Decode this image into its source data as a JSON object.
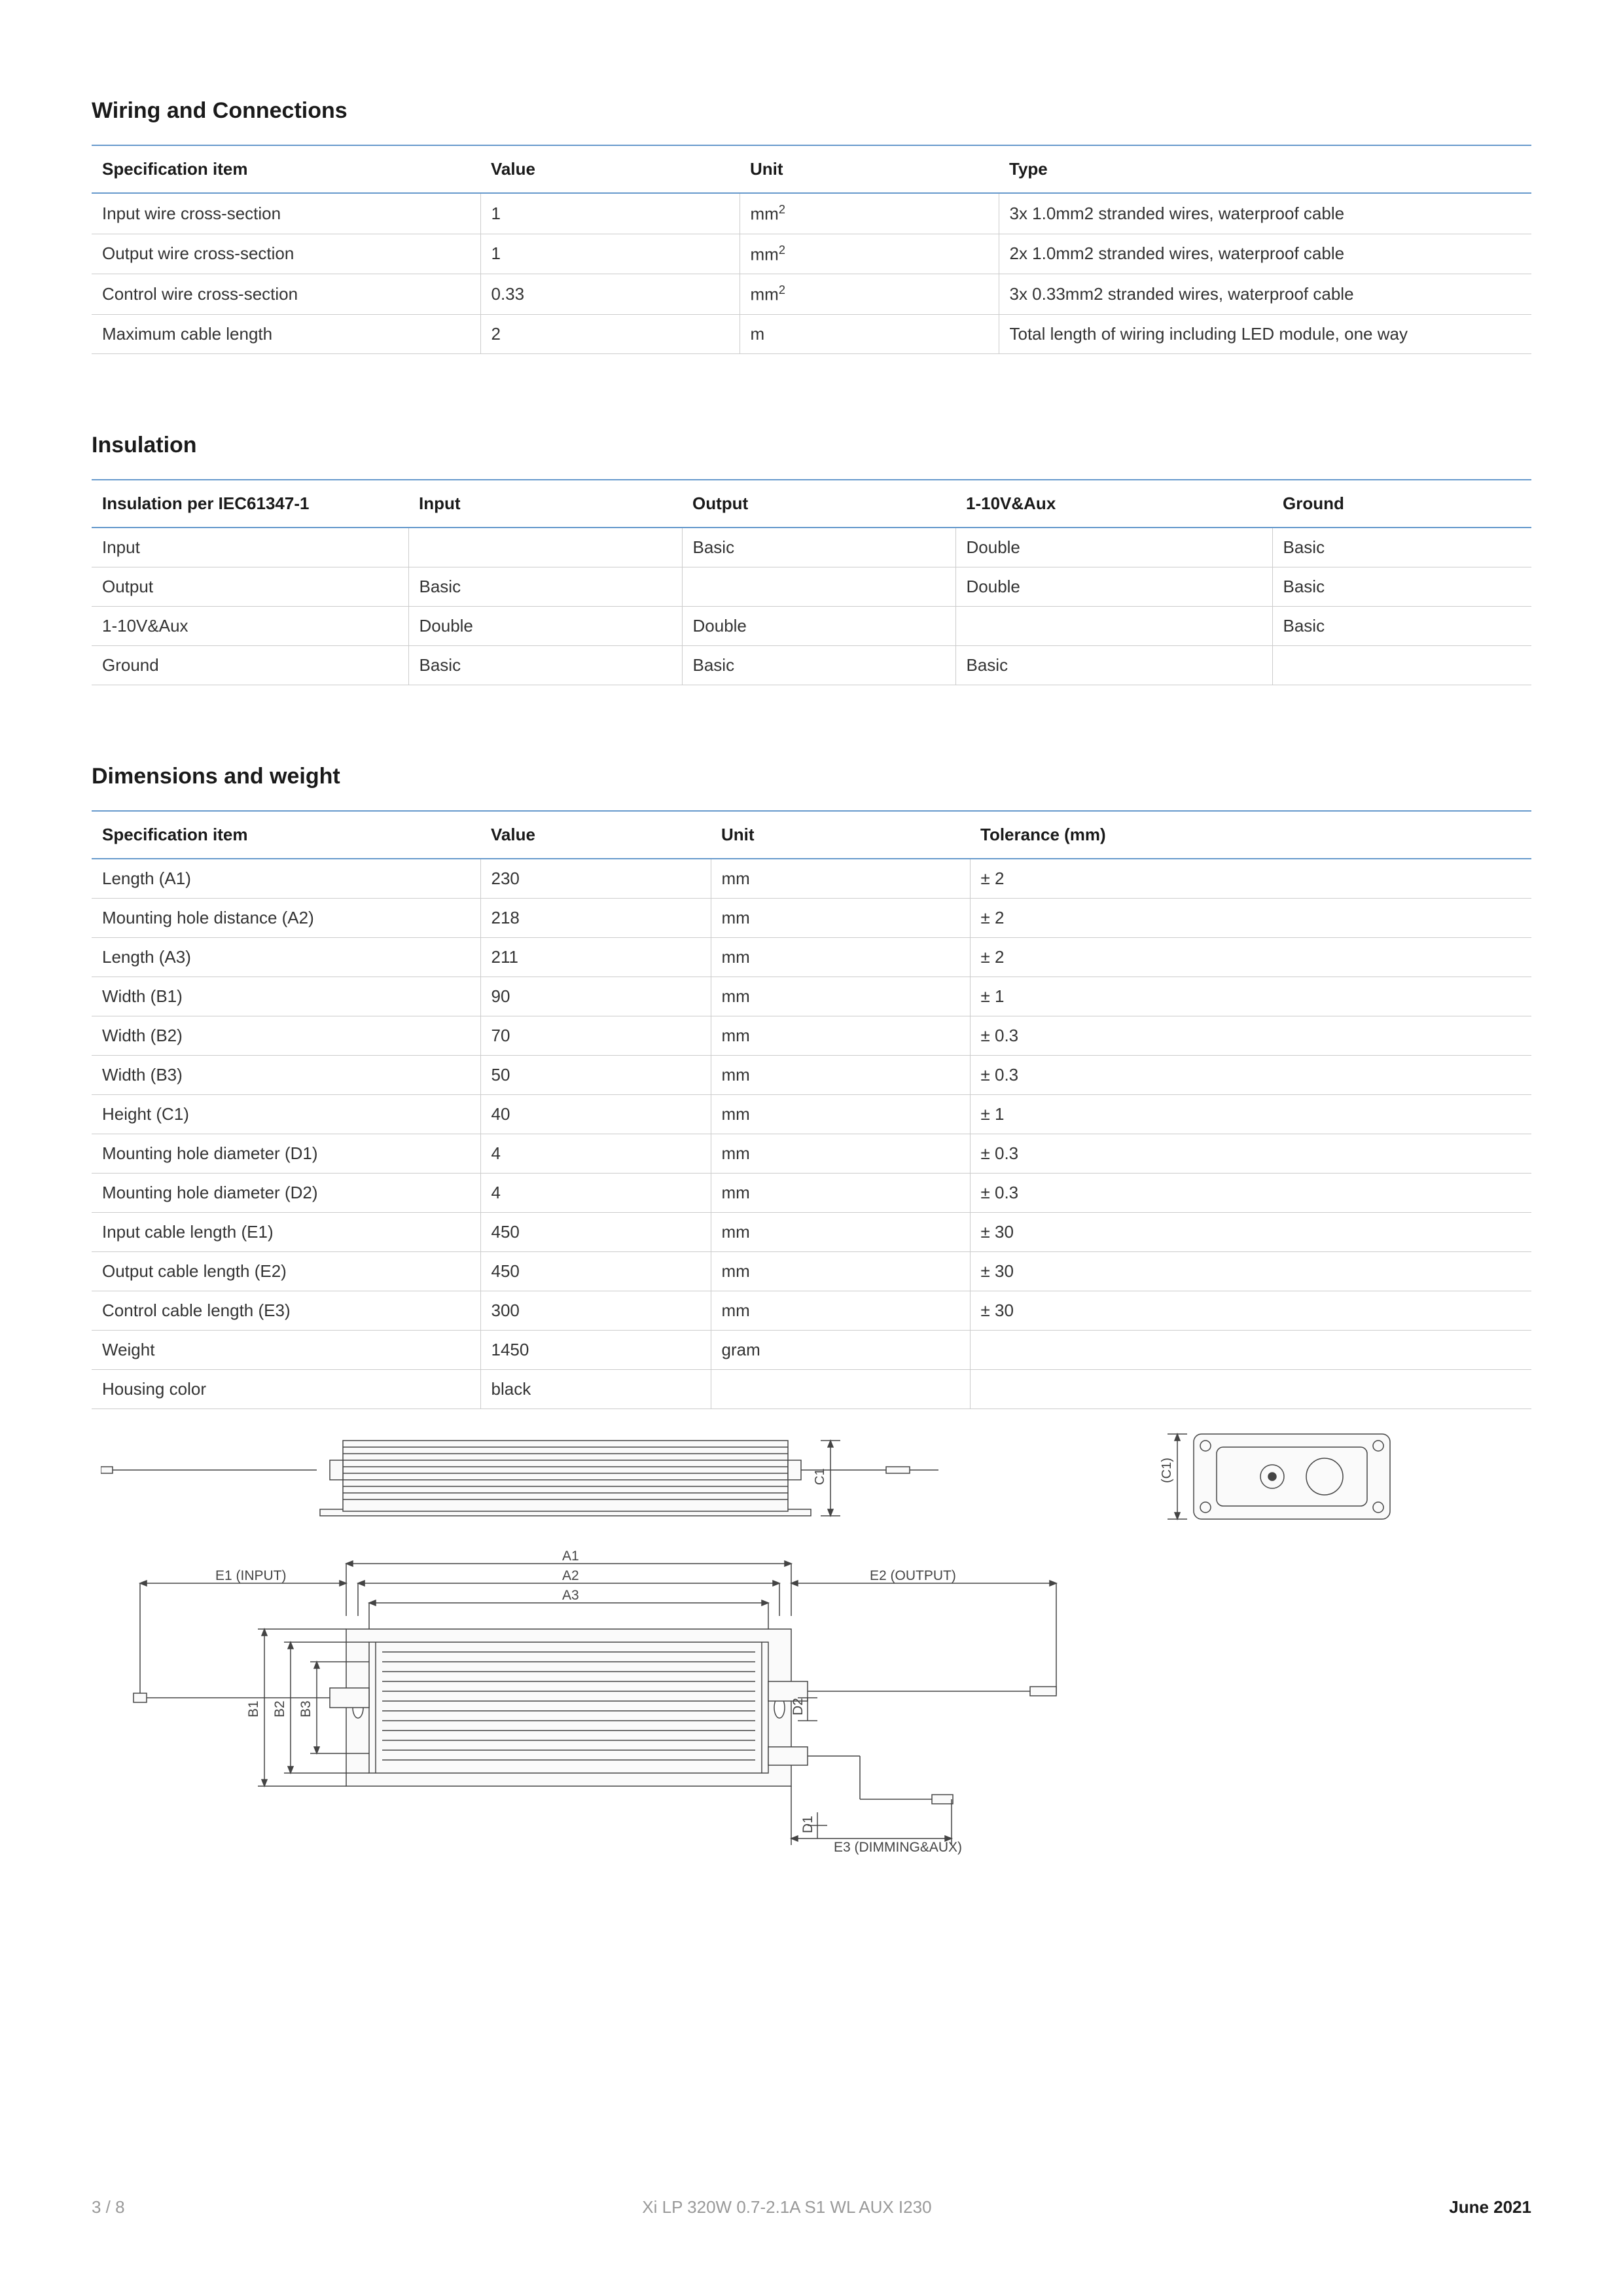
{
  "colors": {
    "rule": "#6699cc",
    "rowline": "#cccccc",
    "text": "#1a1a1a",
    "muted": "#999999",
    "diagram_line": "#444444",
    "diagram_fill": "#fafafa"
  },
  "sections": {
    "wiring": {
      "title": "Wiring and Connections",
      "columns": [
        "Specification item",
        "Value",
        "Unit",
        "Type"
      ],
      "col_widths": [
        "27%",
        "18%",
        "18%",
        "37%"
      ],
      "rows": [
        [
          "Input wire cross-section",
          "1",
          "mm²",
          "3x 1.0mm2 stranded wires, waterproof cable"
        ],
        [
          "Output wire cross-section",
          "1",
          "mm²",
          "2x 1.0mm2 stranded wires, waterproof cable"
        ],
        [
          "Control wire cross-section",
          "0.33",
          "mm²",
          "3x 0.33mm2 stranded wires, waterproof cable"
        ],
        [
          "Maximum cable length",
          "2",
          "m",
          "Total length of wiring including LED module, one way"
        ]
      ]
    },
    "insulation": {
      "title": "Insulation",
      "columns": [
        "Insulation per IEC61347-1",
        "Input",
        "Output",
        "1-10V&Aux",
        "Ground"
      ],
      "col_widths": [
        "22%",
        "19%",
        "19%",
        "22%",
        "18%"
      ],
      "rows": [
        [
          "Input",
          "",
          "Basic",
          "Double",
          "Basic"
        ],
        [
          "Output",
          "Basic",
          "",
          "Double",
          "Basic"
        ],
        [
          "1-10V&Aux",
          "Double",
          "Double",
          "",
          "Basic"
        ],
        [
          "Ground",
          "Basic",
          "Basic",
          "Basic",
          ""
        ]
      ]
    },
    "dimensions": {
      "title": "Dimensions and weight",
      "columns": [
        "Specification item",
        "Value",
        "Unit",
        "Tolerance (mm)"
      ],
      "col_widths": [
        "27%",
        "16%",
        "18%",
        "39%"
      ],
      "rows": [
        [
          "Length (A1)",
          "230",
          "mm",
          "± 2"
        ],
        [
          "Mounting hole distance (A2)",
          "218",
          "mm",
          "± 2"
        ],
        [
          "Length (A3)",
          "211",
          "mm",
          "± 2"
        ],
        [
          "Width (B1)",
          "90",
          "mm",
          "± 1"
        ],
        [
          "Width (B2)",
          "70",
          "mm",
          "± 0.3"
        ],
        [
          "Width (B3)",
          "50",
          "mm",
          "± 0.3"
        ],
        [
          "Height (C1)",
          "40",
          "mm",
          "± 1"
        ],
        [
          "Mounting hole diameter (D1)",
          "4",
          "mm",
          "± 0.3"
        ],
        [
          "Mounting hole diameter (D2)",
          "4",
          "mm",
          "± 0.3"
        ],
        [
          "Input cable length (E1)",
          "450",
          "mm",
          "± 30"
        ],
        [
          "Output cable length (E2)",
          "450",
          "mm",
          "± 30"
        ],
        [
          "Control cable length (E3)",
          "300",
          "mm",
          "± 30"
        ],
        [
          "Weight",
          "1450",
          "gram",
          ""
        ],
        [
          "Housing color",
          "black",
          "",
          ""
        ]
      ]
    }
  },
  "diagrams": {
    "side_view": {
      "label_c1": "C1"
    },
    "end_view": {
      "label_c1": "(C1)"
    },
    "top_view": {
      "labels": {
        "A1": "A1",
        "A2": "A2",
        "A3": "A3",
        "B1": "B1",
        "B2": "B2",
        "B3": "B3",
        "D1": "D1",
        "D2": "D2",
        "E1": "E1 (INPUT)",
        "E2": "E2 (OUTPUT)",
        "E3": "E3 (DIMMING&AUX)"
      }
    }
  },
  "footer": {
    "page": "3 / 8",
    "model": "Xi LP 320W 0.7-2.1A S1 WL AUX I230",
    "date": "June 2021"
  }
}
